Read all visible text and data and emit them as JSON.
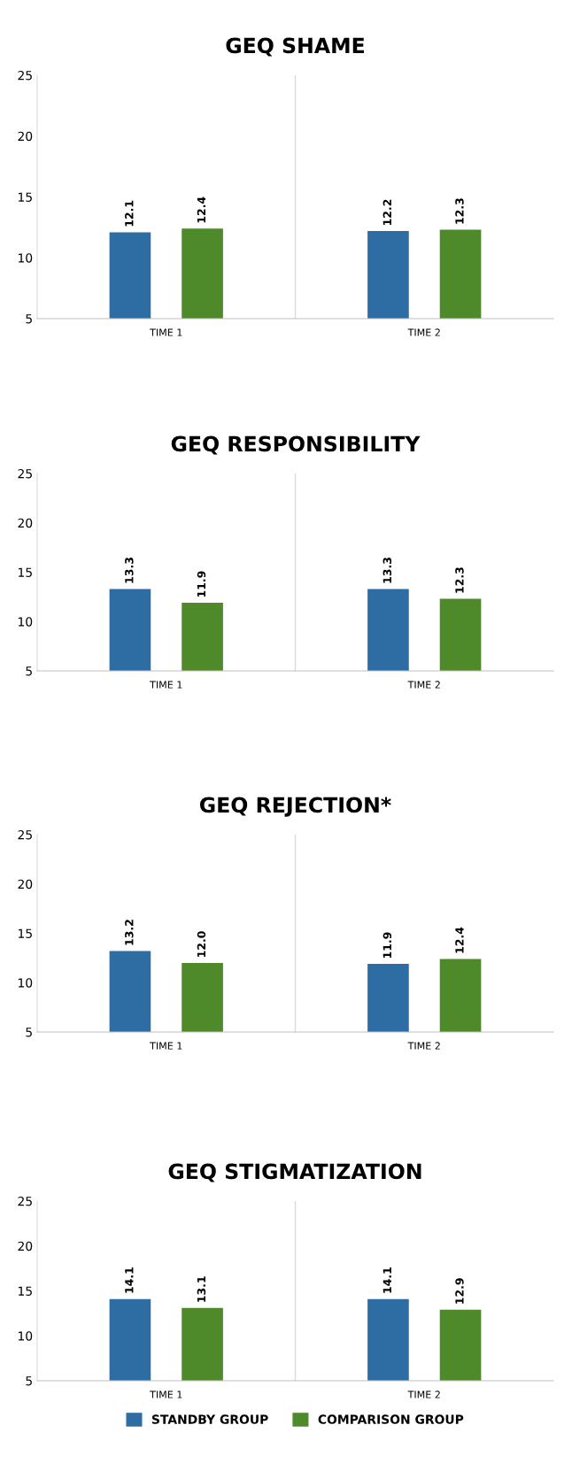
{
  "chart_data": [
    {
      "type": "bar",
      "title": "GEQ SHAME",
      "categories": [
        "TIME 1",
        "TIME 2"
      ],
      "series": [
        {
          "color": "#2e6da4",
          "values": [
            12.1,
            12.2
          ]
        },
        {
          "color": "#4e8a2a",
          "values": [
            12.4,
            12.3
          ]
        }
      ],
      "ylim": [
        5,
        25
      ],
      "yticks": [
        5,
        10,
        15,
        20,
        25
      ],
      "data_labels": true,
      "grid": "x"
    },
    {
      "type": "bar",
      "title": "GEQ RESPONSIBILITY",
      "categories": [
        "TIME 1",
        "TIME 2"
      ],
      "series": [
        {
          "color": "#2e6da4",
          "values": [
            13.3,
            13.3
          ]
        },
        {
          "color": "#4e8a2a",
          "values": [
            11.9,
            12.3
          ]
        }
      ],
      "ylim": [
        5,
        25
      ],
      "yticks": [
        5,
        10,
        15,
        20,
        25
      ],
      "data_labels": true,
      "grid": "x"
    },
    {
      "type": "bar",
      "title": "GEQ REJECTION*",
      "categories": [
        "TIME 1",
        "TIME 2"
      ],
      "series": [
        {
          "color": "#2e6da4",
          "values": [
            13.2,
            11.9
          ],
          "value_labels": [
            "13.2",
            "11.9"
          ]
        },
        {
          "color": "#4e8a2a",
          "values": [
            12.0,
            12.4
          ],
          "value_labels": [
            "12.0",
            "12.4"
          ]
        }
      ],
      "ylim": [
        5,
        25
      ],
      "yticks": [
        5,
        10,
        15,
        20,
        25
      ],
      "grid": "x"
    },
    {
      "type": "bar",
      "title": "GEQ STIGMATIZATION",
      "categories": [
        "TIME 1",
        "TIME 2"
      ],
      "series": [
        {
          "name": "STANDBY GROUP",
          "color": "#2e6da4",
          "values": [
            14.1,
            14.1
          ]
        },
        {
          "name": "COMPARISON GROUP",
          "color": "#4e8a2a",
          "values": [
            13.1,
            12.9
          ]
        }
      ],
      "ylim": [
        5,
        25
      ],
      "yticks": [
        5,
        10,
        15,
        20,
        25
      ],
      "data_labels": true,
      "grid": "x",
      "legend": "bottom"
    }
  ]
}
